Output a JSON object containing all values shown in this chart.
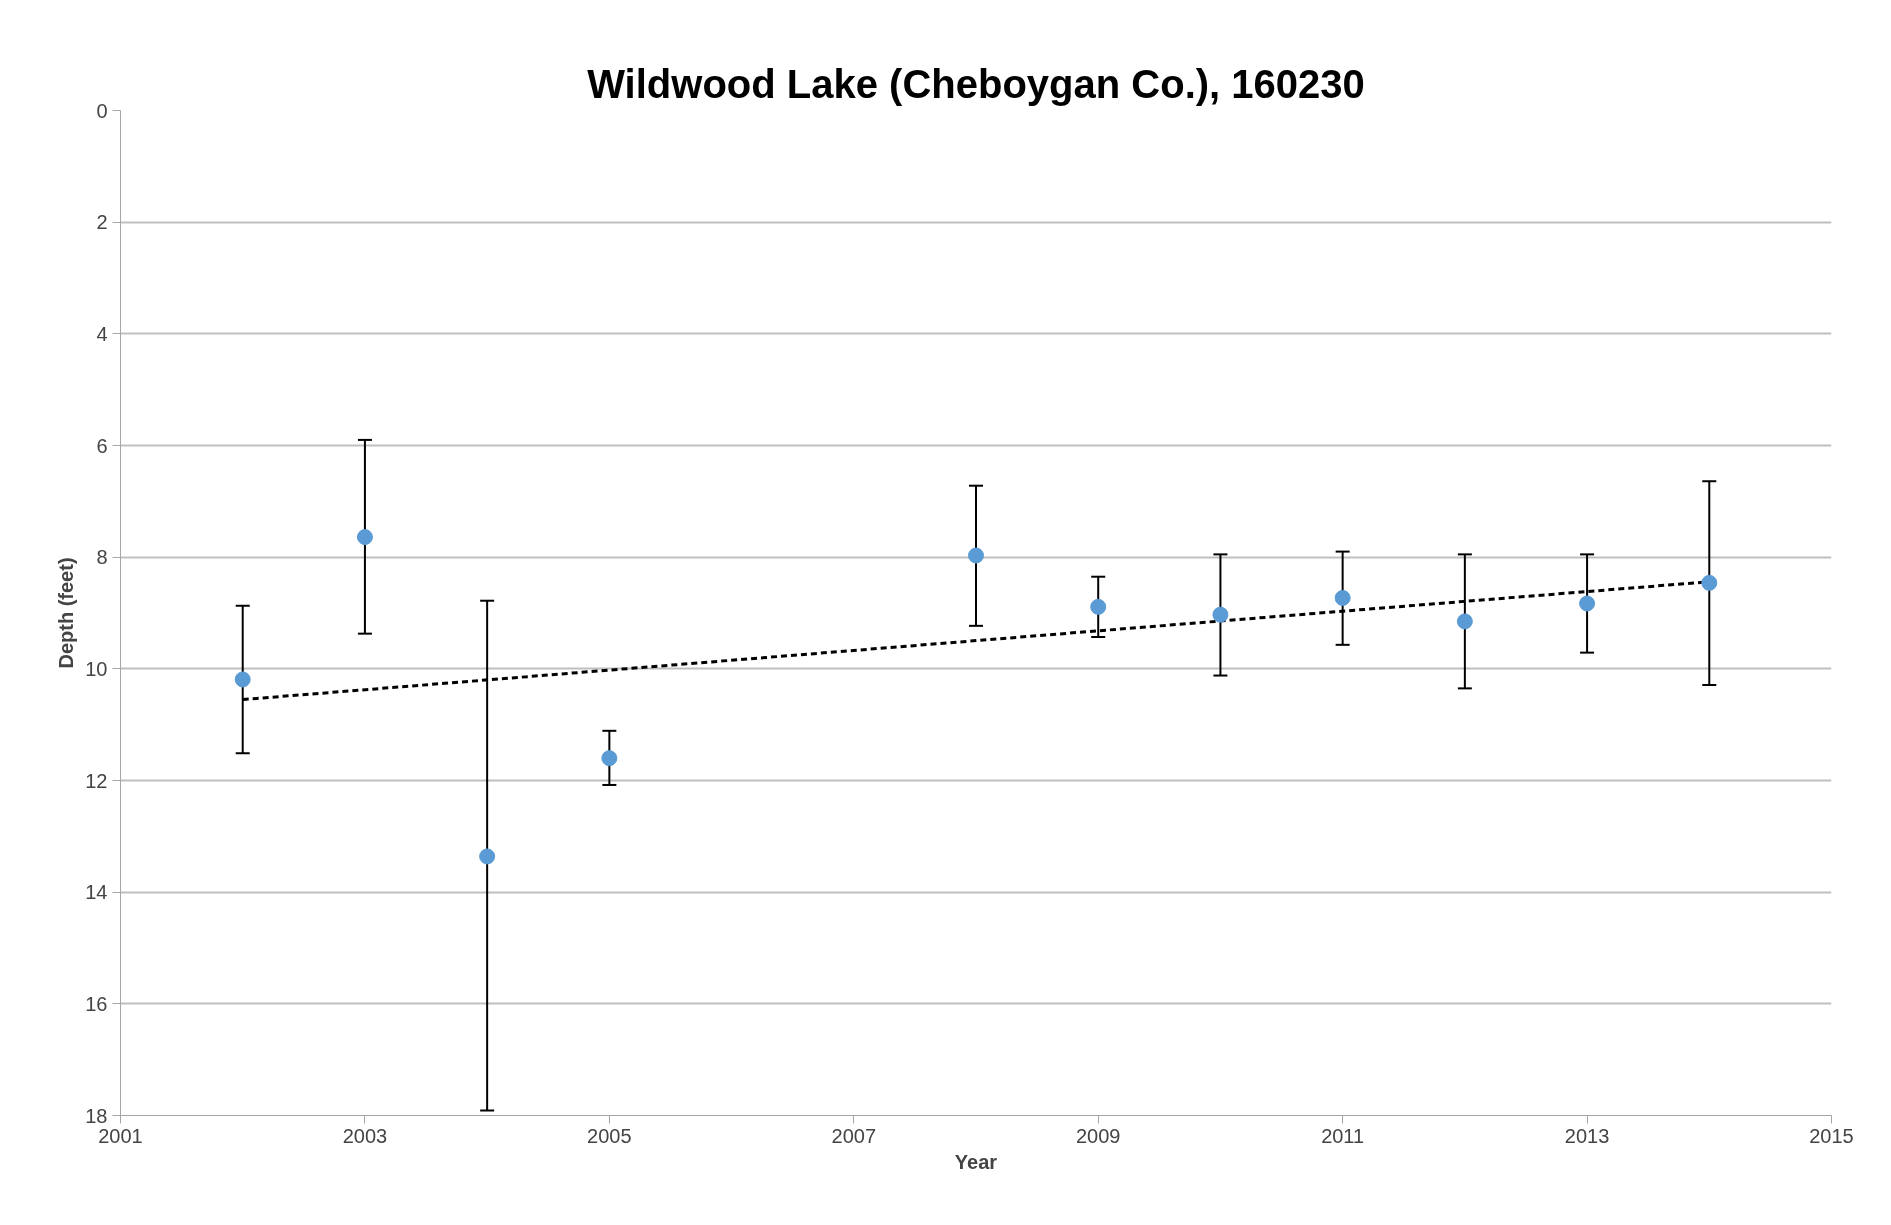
{
  "chart_data": {
    "type": "scatter",
    "title": "Wildwood Lake (Cheboygan Co.), 160230",
    "xlabel": "Year",
    "ylabel": "Depth (feet)",
    "xlim": [
      2001,
      2015
    ],
    "xticks": [
      2001,
      2003,
      2005,
      2007,
      2009,
      2011,
      2013,
      2015
    ],
    "ylim": [
      18,
      0
    ],
    "yticks": [
      0,
      2,
      4,
      6,
      8,
      10,
      12,
      14,
      16,
      18
    ],
    "grid": "y",
    "marker": "circle",
    "series": [
      {
        "color": "#5b9bd5",
        "x": [
          2002,
          2003,
          2004,
          2005,
          2008,
          2009,
          2010,
          2011,
          2012,
          2013,
          2014
        ],
        "values": [
          10.19,
          7.64,
          13.36,
          11.6,
          7.97,
          8.89,
          9.03,
          8.73,
          9.15,
          8.83,
          8.46
        ],
        "errors": [
          [
            8.87,
            11.51
          ],
          [
            5.9,
            9.37
          ],
          [
            8.78,
            17.91
          ],
          [
            11.11,
            12.08
          ],
          [
            6.72,
            9.23
          ],
          [
            8.35,
            9.43
          ],
          [
            7.95,
            10.12
          ],
          [
            7.9,
            9.57
          ],
          [
            7.95,
            10.35
          ],
          [
            7.95,
            9.71
          ],
          [
            6.64,
            10.29
          ]
        ]
      },
      {
        "type": "line",
        "color": "#000000",
        "line_style": "dashed",
        "marker": "none",
        "x": [
          2002,
          2014
        ],
        "values": [
          10.55,
          8.44
        ]
      }
    ]
  }
}
